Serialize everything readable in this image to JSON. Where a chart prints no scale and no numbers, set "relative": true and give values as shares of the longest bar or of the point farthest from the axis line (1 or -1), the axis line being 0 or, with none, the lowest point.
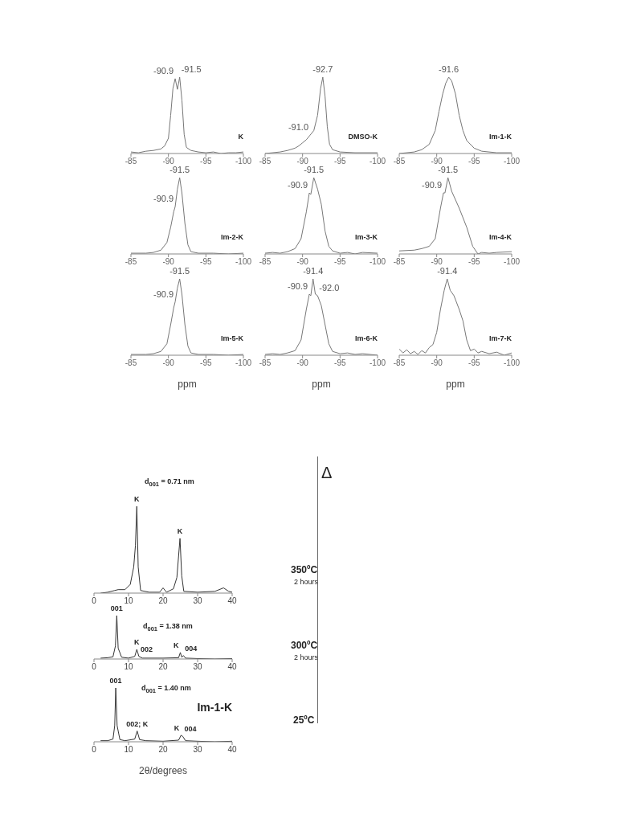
{
  "chart_data": [
    {
      "type": "line",
      "title": "K",
      "relative": true,
      "xlim": [
        -85,
        -100
      ],
      "xticks": [
        -85,
        -90,
        -95,
        -100
      ],
      "color": "#777777",
      "x": [
        -85,
        -86,
        -87,
        -88,
        -89,
        -89.5,
        -90,
        -90.3,
        -90.6,
        -90.9,
        -91.2,
        -91.5,
        -91.8,
        -92.1,
        -92.4,
        -93,
        -94,
        -95,
        -96,
        -97,
        -98,
        -99,
        -100
      ],
      "values": [
        0.02,
        0.01,
        0.03,
        0.04,
        0.06,
        0.1,
        0.2,
        0.5,
        0.85,
        0.98,
        0.84,
        1,
        0.7,
        0.25,
        0.08,
        0.04,
        0.02,
        0.01,
        0.02,
        0,
        0.01,
        0.01,
        0.02
      ],
      "annotations": [
        {
          "text": "-90.9",
          "x": -90.9,
          "y": 0.98
        },
        {
          "text": "-91.5",
          "x": -91.5,
          "y": 1
        }
      ]
    },
    {
      "type": "line",
      "title": "DMSO-K",
      "relative": true,
      "xlim": [
        -85,
        -100
      ],
      "xticks": [
        -85,
        -90,
        -95,
        -100
      ],
      "color": "#777777",
      "x": [
        -85,
        -87,
        -88,
        -89,
        -89.5,
        -90,
        -90.5,
        -91,
        -91.5,
        -92,
        -92.4,
        -92.7,
        -93,
        -93.3,
        -93.6,
        -94,
        -95,
        -97,
        -100
      ],
      "values": [
        0,
        0.02,
        0.04,
        0.07,
        0.1,
        0.14,
        0.18,
        0.24,
        0.3,
        0.5,
        0.85,
        1,
        0.75,
        0.35,
        0.12,
        0.05,
        0.02,
        0.01,
        0.01
      ],
      "annotations": [
        {
          "text": "-91.0",
          "x": -91,
          "y": 0.24
        },
        {
          "text": "-92.7",
          "x": -92.7,
          "y": 1
        }
      ]
    },
    {
      "type": "line",
      "title": "Im-1-K",
      "relative": true,
      "xlim": [
        -85,
        -100
      ],
      "xticks": [
        -85,
        -90,
        -95,
        -100
      ],
      "color": "#777777",
      "x": [
        -85,
        -87,
        -88,
        -89,
        -89.8,
        -90.3,
        -90.8,
        -91.2,
        -91.6,
        -92,
        -92.5,
        -93,
        -93.5,
        -94,
        -95,
        -96,
        -98,
        -100
      ],
      "values": [
        0,
        0.02,
        0.05,
        0.12,
        0.3,
        0.55,
        0.78,
        0.92,
        1,
        0.95,
        0.78,
        0.5,
        0.3,
        0.17,
        0.07,
        0.03,
        0.01,
        0.01
      ],
      "annotations": [
        {
          "text": "-91.6",
          "x": -91.6,
          "y": 1
        }
      ]
    },
    {
      "type": "line",
      "title": "Im-2-K",
      "relative": true,
      "xlim": [
        -85,
        -100
      ],
      "xticks": [
        -85,
        -90,
        -95,
        -100
      ],
      "color": "#777777",
      "x": [
        -85,
        -87,
        -88,
        -89,
        -89.8,
        -90.3,
        -90.7,
        -90.9,
        -91.2,
        -91.5,
        -91.8,
        -92.2,
        -92.6,
        -93,
        -94,
        -96,
        -98,
        -100
      ],
      "values": [
        0.01,
        0.01,
        0.02,
        0.05,
        0.15,
        0.35,
        0.55,
        0.62,
        0.85,
        1,
        0.8,
        0.4,
        0.12,
        0.03,
        0.01,
        0.01,
        0,
        0.01
      ],
      "annotations": [
        {
          "text": "-90.9",
          "x": -90.9,
          "y": 0.62
        },
        {
          "text": "-91.5",
          "x": -91.5,
          "y": 1
        }
      ]
    },
    {
      "type": "line",
      "title": "Im-3-K",
      "relative": true,
      "xlim": [
        -85,
        -100
      ],
      "xticks": [
        -85,
        -90,
        -95,
        -100
      ],
      "color": "#777777",
      "x": [
        -85,
        -86,
        -87,
        -88,
        -89,
        -89.8,
        -90.5,
        -90.9,
        -91.1,
        -91.5,
        -92,
        -92.5,
        -93,
        -93.5,
        -94,
        -95,
        -96,
        -97,
        -98,
        -100
      ],
      "values": [
        0.01,
        0.02,
        0.01,
        0.03,
        0.07,
        0.2,
        0.55,
        0.8,
        0.78,
        1,
        0.85,
        0.65,
        0.3,
        0.1,
        0.04,
        0.01,
        0.02,
        0,
        0.02,
        0.01
      ],
      "annotations": [
        {
          "text": "-90.9",
          "x": -90.9,
          "y": 0.8
        },
        {
          "text": "-91.5",
          "x": -91.5,
          "y": 1
        }
      ]
    },
    {
      "type": "line",
      "title": "Im-4-K",
      "relative": true,
      "xlim": [
        -85,
        -100
      ],
      "xticks": [
        -85,
        -90,
        -95,
        -100
      ],
      "color": "#777777",
      "x": [
        -85,
        -87,
        -88,
        -89,
        -89.8,
        -90.5,
        -90.9,
        -91.1,
        -91.5,
        -92,
        -93,
        -94,
        -94.8,
        -95.5,
        -96,
        -97,
        -98,
        -100
      ],
      "values": [
        0.04,
        0.05,
        0.07,
        0.1,
        0.2,
        0.6,
        0.8,
        0.8,
        1,
        0.82,
        0.6,
        0.35,
        0.1,
        0,
        0.02,
        0.01,
        0.02,
        0.03
      ],
      "annotations": [
        {
          "text": "-90.9",
          "x": -90.9,
          "y": 0.8
        },
        {
          "text": "-91.5",
          "x": -91.5,
          "y": 1
        }
      ]
    },
    {
      "type": "line",
      "title": "Im-5-K",
      "relative": true,
      "xlim": [
        -85,
        -100
      ],
      "xticks": [
        -85,
        -90,
        -95,
        -100
      ],
      "xlabel": "ppm",
      "color": "#777777",
      "x": [
        -85,
        -87,
        -88,
        -89,
        -89.8,
        -90.3,
        -90.7,
        -90.9,
        -91.2,
        -91.5,
        -91.8,
        -92.2,
        -92.6,
        -93,
        -94,
        -96,
        -98,
        -100
      ],
      "values": [
        0.01,
        0.01,
        0.02,
        0.05,
        0.15,
        0.4,
        0.62,
        0.7,
        0.88,
        1,
        0.8,
        0.4,
        0.12,
        0.03,
        0.01,
        0.01,
        0,
        0.01
      ],
      "annotations": [
        {
          "text": "-90.9",
          "x": -90.9,
          "y": 0.7
        },
        {
          "text": "-91.5",
          "x": -91.5,
          "y": 1
        }
      ]
    },
    {
      "type": "line",
      "title": "Im-6-K",
      "relative": true,
      "xlim": [
        -85,
        -100
      ],
      "xticks": [
        -85,
        -90,
        -95,
        -100
      ],
      "xlabel": "ppm",
      "color": "#777777",
      "x": [
        -85,
        -86,
        -87,
        -88,
        -89,
        -89.8,
        -90.5,
        -90.9,
        -91.1,
        -91.4,
        -91.7,
        -92,
        -92.5,
        -93,
        -93.5,
        -94,
        -95,
        -96,
        -97,
        -98,
        -100
      ],
      "values": [
        0.01,
        0.02,
        0.01,
        0.03,
        0.06,
        0.2,
        0.6,
        0.8,
        0.78,
        1,
        0.8,
        0.78,
        0.65,
        0.4,
        0.15,
        0.05,
        0.02,
        0.03,
        0.01,
        0.02,
        0
      ],
      "annotations": [
        {
          "text": "-90.9",
          "x": -90.9,
          "y": 0.8
        },
        {
          "text": "-91.4",
          "x": -91.4,
          "y": 1
        },
        {
          "text": "-92.0",
          "x": -92,
          "y": 0.78
        }
      ]
    },
    {
      "type": "line",
      "title": "Im-7-K",
      "relative": true,
      "xlim": [
        -85,
        -100
      ],
      "xticks": [
        -85,
        -90,
        -95,
        -100
      ],
      "xlabel": "ppm",
      "color": "#777777",
      "x": [
        -85,
        -85.5,
        -86,
        -86.5,
        -87,
        -87.5,
        -88,
        -88.5,
        -89,
        -89.5,
        -90,
        -90.5,
        -91,
        -91.4,
        -91.8,
        -92.3,
        -93,
        -93.5,
        -94,
        -94.5,
        -95,
        -95.5,
        -96,
        -97,
        -98,
        -99,
        -100
      ],
      "values": [
        0.08,
        0.03,
        0.07,
        0.02,
        0.05,
        0.01,
        0.06,
        0.03,
        0.1,
        0.14,
        0.3,
        0.6,
        0.85,
        1,
        0.85,
        0.78,
        0.6,
        0.45,
        0.2,
        0.06,
        0.08,
        0.03,
        0.05,
        0.02,
        0.04,
        0,
        0.03
      ],
      "annotations": [
        {
          "text": "-91.4",
          "x": -91.4,
          "y": 1
        }
      ]
    },
    {
      "type": "line",
      "relative": true,
      "xlim": [
        0,
        40
      ],
      "xticks": [
        0,
        10,
        20,
        30,
        40
      ],
      "color": "#333333",
      "x": [
        2,
        4,
        6,
        7,
        9,
        10.5,
        11.5,
        12,
        12.4,
        12.8,
        13.5,
        16,
        19,
        20,
        21,
        23,
        24,
        24.9,
        25.4,
        26,
        30,
        35,
        37.5,
        39,
        40
      ],
      "values": [
        0,
        0.01,
        0.03,
        0.04,
        0.04,
        0.1,
        0.3,
        0.55,
        1,
        0.3,
        0.03,
        0.01,
        0.01,
        0.06,
        0.01,
        0.05,
        0.18,
        0.63,
        0.2,
        0.02,
        0.01,
        0.02,
        0.06,
        0.02,
        0.01
      ],
      "annotations": [
        {
          "text": "K",
          "x": 12.4,
          "y": 1
        },
        {
          "text": "K",
          "x": 24.9,
          "y": 0.63
        },
        "d$_{001}$ = 0.71 nm",
        "350ºC",
        "2 hours",
        "Δ"
      ]
    },
    {
      "type": "line",
      "relative": true,
      "xlim": [
        0,
        40
      ],
      "xticks": [
        0,
        10,
        20,
        30,
        40
      ],
      "color": "#333333",
      "x": [
        2,
        4,
        5.5,
        6.2,
        6.6,
        7,
        8,
        10,
        11.8,
        12.4,
        13,
        14,
        20,
        24.5,
        25,
        25.4,
        25.9,
        26.5,
        30,
        35,
        40
      ],
      "values": [
        0.02,
        0.03,
        0.05,
        0.3,
        1,
        0.25,
        0.04,
        0.02,
        0.06,
        0.22,
        0.06,
        0.02,
        0.02,
        0.03,
        0.15,
        0.04,
        0.08,
        0.02,
        0.01,
        0,
        0.01
      ],
      "annotations": [
        {
          "text": "001",
          "x": 6.6,
          "y": 1
        },
        {
          "text": "K",
          "x": 12.4,
          "y": 0.22
        },
        {
          "text": "002",
          "x": 13,
          "y": 0.06
        },
        {
          "text": "K",
          "x": 25,
          "y": 0.15
        },
        {
          "text": "004",
          "x": 25.9,
          "y": 0.08
        },
        "d$_{001}$ = 1.38 nm",
        "300ºC",
        "2 hours"
      ]
    },
    {
      "type": "line",
      "title": "Im-1-K",
      "relative": true,
      "xlim": [
        0,
        40
      ],
      "xticks": [
        0,
        10,
        20,
        30,
        40
      ],
      "xlabel": "2θ/degrees",
      "color": "#333333",
      "x": [
        2,
        4,
        5.5,
        6,
        6.3,
        6.7,
        7.5,
        9,
        11.8,
        12.5,
        13.2,
        15,
        20,
        24.5,
        25.2,
        25.7,
        26.5,
        30,
        35,
        40
      ],
      "values": [
        0.02,
        0.02,
        0.05,
        0.3,
        1,
        0.3,
        0.04,
        0.02,
        0.05,
        0.2,
        0.04,
        0.02,
        0.01,
        0.03,
        0.12,
        0.1,
        0.02,
        0.01,
        0,
        0.01
      ],
      "annotations": [
        {
          "text": "001",
          "x": 6.3,
          "y": 1
        },
        {
          "text": "002; K",
          "x": 12.5,
          "y": 0.2
        },
        {
          "text": "K",
          "x": 25.2,
          "y": 0.12
        },
        {
          "text": "004",
          "x": 25.7,
          "y": 0.1
        },
        "d$_{001}$ = 1.40 nm",
        "25ºC"
      ]
    }
  ]
}
